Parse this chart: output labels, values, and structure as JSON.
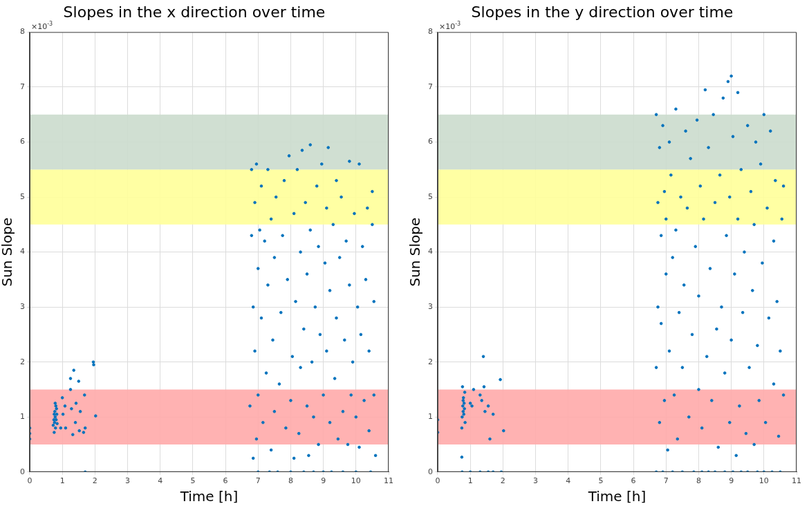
{
  "chart_data": [
    {
      "type": "scatter",
      "title": "Slopes in the x direction over time",
      "xlabel": "Time [h]",
      "ylabel": "Sun Slope",
      "annotations": [
        "×10$^{-3}$"
      ],
      "x": [
        0,
        0,
        0,
        0.72,
        0.74,
        0.75,
        0.76,
        0.77,
        0.78,
        0.79,
        0.8,
        0.81,
        0.82,
        0.83,
        0.84,
        0.75,
        0.78,
        0.95,
        1.0,
        1.02,
        1.08,
        1.1,
        1.25,
        1.25,
        1.28,
        1.32,
        1.35,
        1.4,
        1.42,
        1.5,
        1.52,
        1.55,
        1.65,
        1.68,
        1.7,
        1.7,
        1.95,
        1.96,
        2.02,
        6.75,
        6.8,
        6.8,
        6.85,
        6.85,
        6.9,
        6.9,
        6.95,
        6.95,
        7.0,
        7.0,
        7.0,
        7.05,
        7.1,
        7.1,
        7.15,
        7.2,
        7.25,
        7.3,
        7.3,
        7.35,
        7.4,
        7.4,
        7.45,
        7.5,
        7.5,
        7.55,
        7.6,
        7.65,
        7.7,
        7.75,
        7.8,
        7.85,
        7.9,
        7.95,
        8.0,
        8.0,
        8.05,
        8.1,
        8.1,
        8.15,
        8.2,
        8.25,
        8.3,
        8.3,
        8.35,
        8.4,
        8.4,
        8.45,
        8.5,
        8.5,
        8.55,
        8.6,
        8.6,
        8.65,
        8.7,
        8.7,
        8.75,
        8.8,
        8.85,
        8.85,
        8.9,
        8.95,
        9.0,
        9.0,
        9.05,
        9.1,
        9.1,
        9.15,
        9.2,
        9.2,
        9.25,
        9.3,
        9.35,
        9.4,
        9.4,
        9.45,
        9.5,
        9.55,
        9.6,
        9.6,
        9.65,
        9.7,
        9.75,
        9.8,
        9.8,
        9.85,
        9.9,
        9.95,
        10.0,
        10.0,
        10.05,
        10.1,
        10.1,
        10.15,
        10.2,
        10.25,
        10.3,
        10.35,
        10.4,
        10.4,
        10.45,
        10.5,
        10.5,
        10.55,
        10.6,
        10.55
      ],
      "values": [
        0.6,
        0.7,
        0.8,
        0.85,
        0.95,
        1.05,
        0.9,
        1.1,
        1.0,
        0.8,
        1.2,
        0.95,
        1.15,
        1.05,
        0.88,
        0.72,
        1.25,
        0.8,
        1.35,
        1.05,
        1.2,
        0.8,
        1.7,
        1.5,
        1.15,
        0.68,
        1.85,
        0.9,
        1.25,
        1.65,
        0.75,
        1.1,
        0.72,
        1.4,
        0.8,
        0,
        2.0,
        1.95,
        1.02,
        1.2,
        4.3,
        5.5,
        0.25,
        3.0,
        2.2,
        4.9,
        0.6,
        5.6,
        0,
        1.4,
        3.7,
        4.4,
        2.8,
        5.2,
        0.9,
        4.2,
        1.8,
        3.4,
        5.5,
        0,
        0.4,
        4.6,
        2.4,
        1.1,
        3.9,
        5.0,
        0,
        1.6,
        2.9,
        4.3,
        5.3,
        0.8,
        3.5,
        5.75,
        0,
        1.3,
        2.1,
        4.7,
        0.25,
        3.1,
        5.5,
        0.7,
        4.0,
        1.9,
        5.85,
        0,
        2.6,
        4.9,
        1.2,
        3.6,
        0.3,
        5.95,
        4.4,
        2.0,
        0,
        1.0,
        3.0,
        5.2,
        0.5,
        4.1,
        2.5,
        5.6,
        0,
        1.4,
        3.8,
        4.8,
        2.2,
        5.9,
        0.9,
        3.3,
        0,
        4.5,
        1.7,
        5.3,
        2.8,
        0.6,
        3.9,
        5.0,
        1.1,
        0,
        2.4,
        4.2,
        0.5,
        5.65,
        3.4,
        1.4,
        2.0,
        4.7,
        0,
        1.0,
        3.0,
        5.6,
        0.45,
        2.5,
        4.1,
        1.3,
        3.5,
        4.8,
        0.75,
        2.2,
        0,
        5.1,
        4.5,
        1.4,
        0.3,
        3.1
      ],
      "color": "#0072bd",
      "marker": "circle",
      "xlim": [
        0,
        11
      ],
      "xticks": [
        0,
        1,
        2,
        3,
        4,
        5,
        6,
        7,
        8,
        9,
        10,
        11
      ],
      "ylim": [
        0,
        8
      ],
      "yticks": [
        0,
        1,
        2,
        3,
        4,
        5,
        6,
        7,
        8
      ],
      "grid": true,
      "bands": [
        {
          "axis": "y",
          "from": 0.5,
          "to": 1.5,
          "color": "#ffaaaa"
        },
        {
          "axis": "y",
          "from": 4.5,
          "to": 5.5,
          "color": "#ffff99"
        },
        {
          "axis": "y",
          "from": 5.5,
          "to": 6.5,
          "color": "#cbdccd"
        }
      ]
    },
    {
      "type": "scatter",
      "title": "Slopes in the y direction over time",
      "xlabel": "Time [h]",
      "ylabel": "Sun Slope",
      "annotations": [
        "×10$^{-3}$"
      ],
      "x": [
        0,
        0,
        0.74,
        0.75,
        0.74,
        0.75,
        0.76,
        0.77,
        0.78,
        0.79,
        0.8,
        0.81,
        0.82,
        0.83,
        0.84,
        0.78,
        1.0,
        1.0,
        1.05,
        1.1,
        1.3,
        1.3,
        1.35,
        1.4,
        1.42,
        1.45,
        1.55,
        1.55,
        1.6,
        1.7,
        1.7,
        1.92,
        1.95,
        2.02,
        6.7,
        6.7,
        6.7,
        6.75,
        6.75,
        6.8,
        6.8,
        6.85,
        6.85,
        6.9,
        6.9,
        6.95,
        6.95,
        7.0,
        7.0,
        7.05,
        7.1,
        7.1,
        7.15,
        7.2,
        7.2,
        7.25,
        7.3,
        7.3,
        7.35,
        7.4,
        7.45,
        7.5,
        7.5,
        7.55,
        7.6,
        7.65,
        7.7,
        7.75,
        7.8,
        7.85,
        7.9,
        7.95,
        8.0,
        8.0,
        8.05,
        8.1,
        8.1,
        8.15,
        8.2,
        8.25,
        8.3,
        8.3,
        8.35,
        8.4,
        8.45,
        8.5,
        8.5,
        8.55,
        8.6,
        8.65,
        8.7,
        8.75,
        8.8,
        8.8,
        8.85,
        8.9,
        8.95,
        8.95,
        9.0,
        9.0,
        9.05,
        9.05,
        9.1,
        9.15,
        9.2,
        9.2,
        9.25,
        9.3,
        9.3,
        9.35,
        9.4,
        9.45,
        9.5,
        9.5,
        9.55,
        9.6,
        9.65,
        9.7,
        9.7,
        9.75,
        9.8,
        9.8,
        9.85,
        9.9,
        9.95,
        10.0,
        10.0,
        10.05,
        10.1,
        10.15,
        10.2,
        10.25,
        10.3,
        10.3,
        10.35,
        10.4,
        10.45,
        10.5,
        10.5,
        10.55,
        10.6,
        10.6
      ],
      "values": [
        0.95,
        0.72,
        0.27,
        0,
        0.8,
        1.0,
        1.55,
        1.2,
        1.1,
        1.35,
        1.05,
        1.25,
        1.15,
        1.45,
        0.9,
        1.3,
        0,
        1.25,
        1.2,
        1.5,
        0,
        1.4,
        1.3,
        2.1,
        1.55,
        1.1,
        0,
        1.2,
        0.6,
        1.05,
        0,
        1.68,
        0,
        0.75,
        6.5,
        1.9,
        0,
        4.9,
        3.0,
        5.9,
        0.9,
        4.3,
        2.7,
        6.3,
        0,
        5.1,
        1.3,
        3.6,
        4.6,
        0.4,
        6.0,
        2.2,
        5.4,
        0,
        3.9,
        1.4,
        6.6,
        4.4,
        0.6,
        2.9,
        5.0,
        0,
        1.9,
        3.4,
        6.2,
        4.8,
        1.0,
        5.7,
        2.5,
        0,
        4.1,
        6.4,
        1.5,
        3.2,
        5.2,
        0,
        0.8,
        4.6,
        6.95,
        2.1,
        5.9,
        0,
        3.7,
        1.3,
        6.5,
        4.9,
        0,
        2.6,
        0.45,
        5.4,
        3.0,
        6.8,
        0,
        1.8,
        4.3,
        7.1,
        5.0,
        0.9,
        7.2,
        2.4,
        0,
        6.1,
        3.6,
        0.3,
        4.6,
        6.9,
        1.2,
        0,
        5.5,
        2.9,
        4.0,
        0.7,
        6.3,
        0,
        1.9,
        5.1,
        3.3,
        0.5,
        4.5,
        6.0,
        0,
        2.3,
        1.3,
        5.6,
        3.8,
        0,
        6.5,
        0.9,
        4.8,
        2.8,
        6.2,
        0,
        1.6,
        4.2,
        5.3,
        3.1,
        0.65,
        0,
        2.2,
        4.6,
        1.4,
        5.2
      ],
      "color": "#0072bd",
      "marker": "circle",
      "xlim": [
        0,
        11
      ],
      "xticks": [
        0,
        1,
        2,
        3,
        4,
        5,
        6,
        7,
        8,
        9,
        10,
        11
      ],
      "ylim": [
        0,
        8
      ],
      "yticks": [
        0,
        1,
        2,
        3,
        4,
        5,
        6,
        7,
        8
      ],
      "grid": true,
      "bands": [
        {
          "axis": "y",
          "from": 0.5,
          "to": 1.5,
          "color": "#ffaaaa"
        },
        {
          "axis": "y",
          "from": 4.5,
          "to": 5.5,
          "color": "#ffff99"
        },
        {
          "axis": "y",
          "from": 5.5,
          "to": 6.5,
          "color": "#cbdccd"
        }
      ]
    }
  ]
}
